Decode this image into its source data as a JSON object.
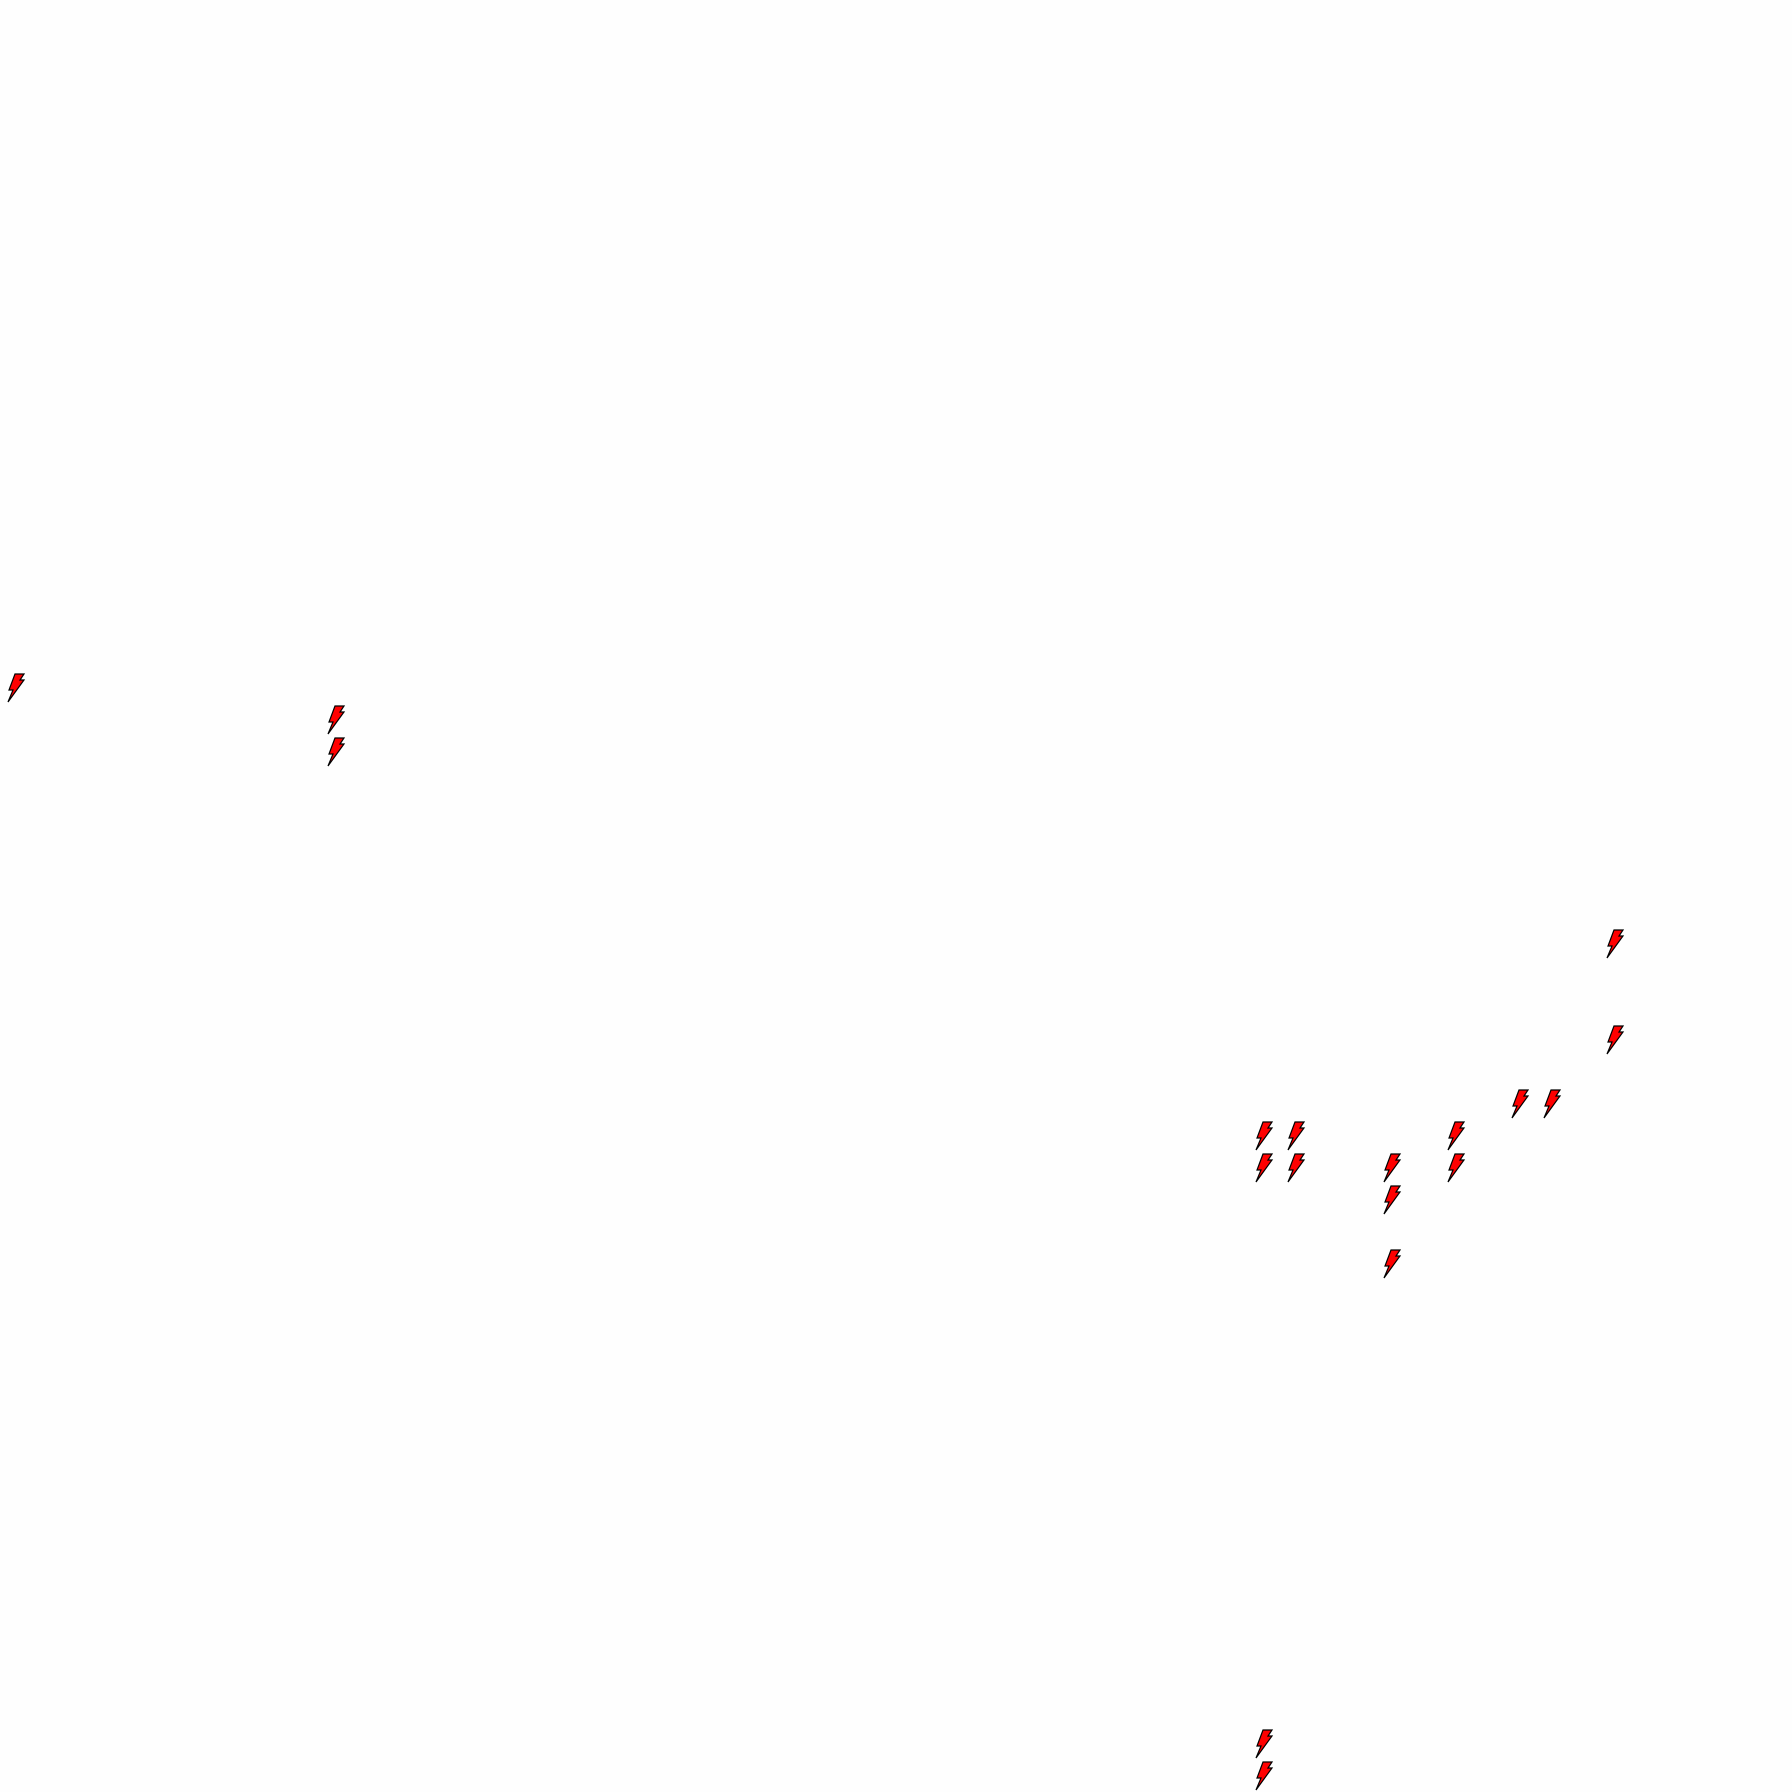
{
  "icon": "lightning-bolt-icon",
  "colors": {
    "fill": "#ff0000",
    "stroke": "#000000",
    "background": "#fefefe"
  },
  "bolt_count": 19
}
